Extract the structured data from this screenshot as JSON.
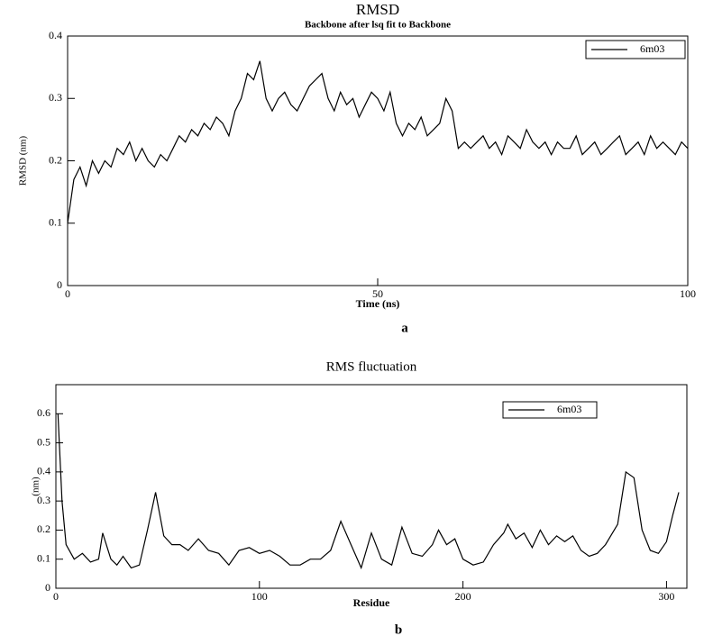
{
  "chart_data": [
    {
      "type": "line",
      "title": "RMSD",
      "subtitle": "Backbone after lsq fit to Backbone",
      "x_label": "Time (ns)",
      "y_label": "RMSD (nm)",
      "panel_label": "a",
      "x": [
        0,
        1,
        2,
        3,
        4,
        5,
        6,
        7,
        8,
        9,
        10,
        11,
        12,
        13,
        14,
        15,
        16,
        17,
        18,
        19,
        20,
        21,
        22,
        23,
        24,
        25,
        26,
        27,
        28,
        29,
        30,
        31,
        32,
        33,
        34,
        35,
        36,
        37,
        38,
        39,
        40,
        41,
        42,
        43,
        44,
        45,
        46,
        47,
        48,
        49,
        50,
        51,
        52,
        53,
        54,
        55,
        56,
        57,
        58,
        59,
        60,
        61,
        62,
        63,
        64,
        65,
        66,
        67,
        68,
        69,
        70,
        71,
        72,
        73,
        74,
        75,
        76,
        77,
        78,
        79,
        80,
        81,
        82,
        83,
        84,
        85,
        86,
        87,
        88,
        89,
        90,
        91,
        92,
        93,
        94,
        95,
        96,
        97,
        98,
        99,
        100
      ],
      "series": [
        {
          "name": "6m03",
          "color": "#000000",
          "values": [
            0.1,
            0.17,
            0.19,
            0.16,
            0.2,
            0.18,
            0.2,
            0.19,
            0.22,
            0.21,
            0.23,
            0.2,
            0.22,
            0.2,
            0.19,
            0.21,
            0.2,
            0.22,
            0.24,
            0.23,
            0.25,
            0.24,
            0.26,
            0.25,
            0.27,
            0.26,
            0.24,
            0.28,
            0.3,
            0.34,
            0.33,
            0.36,
            0.3,
            0.28,
            0.3,
            0.31,
            0.29,
            0.28,
            0.3,
            0.32,
            0.33,
            0.34,
            0.3,
            0.28,
            0.31,
            0.29,
            0.3,
            0.27,
            0.29,
            0.31,
            0.3,
            0.28,
            0.31,
            0.26,
            0.24,
            0.26,
            0.25,
            0.27,
            0.24,
            0.25,
            0.26,
            0.3,
            0.28,
            0.22,
            0.23,
            0.22,
            0.23,
            0.24,
            0.22,
            0.23,
            0.21,
            0.24,
            0.23,
            0.22,
            0.25,
            0.23,
            0.22,
            0.23,
            0.21,
            0.23,
            0.22,
            0.22,
            0.24,
            0.21,
            0.22,
            0.23,
            0.21,
            0.22,
            0.23,
            0.24,
            0.21,
            0.22,
            0.23,
            0.21,
            0.24,
            0.22,
            0.23,
            0.22,
            0.21,
            0.23,
            0.22
          ]
        }
      ],
      "xlim": [
        0,
        100
      ],
      "xticks": [
        0,
        50,
        100
      ],
      "ylim": [
        0,
        0.4
      ],
      "yticks": [
        0,
        0.1,
        0.2,
        0.3,
        0.4
      ]
    },
    {
      "type": "line",
      "title": "RMS fluctuation",
      "x_label": "Residue",
      "y_label": "(nm)",
      "panel_label": "b",
      "x": [
        1,
        3,
        5,
        9,
        13,
        17,
        21,
        23,
        27,
        30,
        33,
        37,
        41,
        45,
        49,
        53,
        57,
        61,
        65,
        70,
        75,
        80,
        85,
        90,
        95,
        100,
        105,
        110,
        115,
        120,
        125,
        130,
        135,
        140,
        145,
        150,
        155,
        160,
        165,
        170,
        175,
        180,
        185,
        188,
        192,
        196,
        200,
        205,
        210,
        215,
        220,
        222,
        226,
        230,
        234,
        238,
        242,
        246,
        250,
        254,
        258,
        262,
        266,
        270,
        276,
        280,
        284,
        288,
        292,
        296,
        300,
        303,
        306
      ],
      "series": [
        {
          "name": "6m03",
          "color": "#000000",
          "values": [
            0.6,
            0.3,
            0.15,
            0.1,
            0.12,
            0.09,
            0.1,
            0.19,
            0.1,
            0.08,
            0.11,
            0.07,
            0.08,
            0.2,
            0.33,
            0.18,
            0.15,
            0.15,
            0.13,
            0.17,
            0.13,
            0.12,
            0.08,
            0.13,
            0.14,
            0.12,
            0.13,
            0.11,
            0.08,
            0.08,
            0.1,
            0.1,
            0.13,
            0.23,
            0.15,
            0.07,
            0.19,
            0.1,
            0.08,
            0.21,
            0.12,
            0.11,
            0.15,
            0.2,
            0.15,
            0.17,
            0.1,
            0.08,
            0.09,
            0.15,
            0.19,
            0.22,
            0.17,
            0.19,
            0.14,
            0.2,
            0.15,
            0.18,
            0.16,
            0.18,
            0.13,
            0.11,
            0.12,
            0.15,
            0.22,
            0.4,
            0.38,
            0.2,
            0.13,
            0.12,
            0.16,
            0.25,
            0.33
          ]
        }
      ],
      "xlim": [
        0,
        310
      ],
      "xticks": [
        0,
        100,
        200,
        300
      ],
      "ylim": [
        0,
        0.7
      ],
      "yticks": [
        0,
        0.1,
        0.2,
        0.3,
        0.4,
        0.5,
        0.6
      ]
    }
  ]
}
